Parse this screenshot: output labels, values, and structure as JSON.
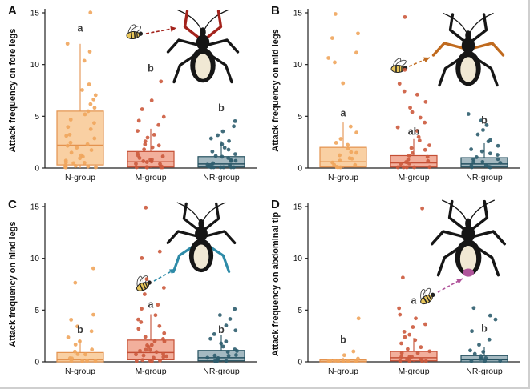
{
  "figure": {
    "background": "#ffffff",
    "panels": [
      "A",
      "B",
      "C",
      "D"
    ]
  },
  "groups": [
    "N-group",
    "M-group",
    "NR-group"
  ],
  "group_styles": [
    {
      "name": "N-group",
      "box_fill": "#F8C893",
      "box_stroke": "#E3924E",
      "point_color": "#EFA55C"
    },
    {
      "name": "M-group",
      "box_fill": "#F0A18B",
      "box_stroke": "#C44F35",
      "point_color": "#CC5A3D"
    },
    {
      "name": "NR-group",
      "box_fill": "#94ADB6",
      "box_stroke": "#24505F",
      "point_color": "#2E5D6E"
    }
  ],
  "chart_data": [
    {
      "type": "boxplot",
      "panel_label": "A",
      "ylabel": "Attack frequency on fore legs",
      "ylim": [
        0,
        15
      ],
      "yticks": [
        0,
        5,
        10,
        15
      ],
      "categories": [
        "N-group",
        "M-group",
        "NR-group"
      ],
      "illustration": {
        "subject": "assassin-bug",
        "attacker": "bee",
        "target": "fore legs",
        "highlight_color": "#A3231C"
      },
      "series": [
        {
          "group": "N-group",
          "sig_letter": "a",
          "letter_y": 13.2,
          "box": {
            "whisker_low": 0,
            "q1": 0.3,
            "median": 2.2,
            "q3": 5.5,
            "whisker_high": 12
          },
          "points": [
            15,
            12,
            11.2,
            10.4,
            8.1,
            7.6,
            7.1,
            6.6,
            6.2,
            5.8,
            5.4,
            5.1,
            4.7,
            4.3,
            4,
            3.7,
            3.3,
            3,
            2.8,
            2.5,
            2.3,
            2.1,
            1.9,
            1.7,
            1.5,
            1.3,
            1.1,
            0.9,
            0.8,
            0.6,
            0.5,
            0.4,
            0.3,
            0.2,
            0.1,
            0,
            0,
            0
          ]
        },
        {
          "group": "M-group",
          "sig_letter": "b",
          "letter_y": 9.3,
          "box": {
            "whisker_low": 0,
            "q1": 0.1,
            "median": 0.6,
            "q3": 1.6,
            "whisker_high": 3.8
          },
          "points": [
            8.3,
            6.6,
            5.6,
            5,
            4.5,
            4.1,
            3.6,
            3.2,
            2.9,
            2.6,
            2.3,
            2.1,
            1.9,
            1.7,
            1.5,
            1.3,
            1.2,
            1,
            0.9,
            0.8,
            0.7,
            0.6,
            0.5,
            0.4,
            0.3,
            0.2,
            0.1,
            0,
            0,
            0,
            0,
            0
          ]
        },
        {
          "group": "NR-group",
          "sig_letter": "b",
          "letter_y": 5.5,
          "box": {
            "whisker_low": 0,
            "q1": 0.1,
            "median": 0.4,
            "q3": 1.1,
            "whisker_high": 2.6
          },
          "points": [
            4.6,
            4.1,
            3.6,
            3.1,
            2.8,
            2.5,
            2.2,
            2,
            1.8,
            1.6,
            1.4,
            1.2,
            1.1,
            0.9,
            0.8,
            0.7,
            0.6,
            0.5,
            0.4,
            0.3,
            0.2,
            0.1,
            0,
            0,
            0,
            0,
            0,
            0
          ]
        }
      ]
    },
    {
      "type": "boxplot",
      "panel_label": "B",
      "ylabel": "Attack frequency on mid legs",
      "ylim": [
        0,
        15
      ],
      "yticks": [
        0,
        5,
        10,
        15
      ],
      "categories": [
        "N-group",
        "M-group",
        "NR-group"
      ],
      "illustration": {
        "subject": "assassin-bug",
        "attacker": "bee",
        "target": "mid legs",
        "highlight_color": "#C06A1E"
      },
      "series": [
        {
          "group": "N-group",
          "sig_letter": "a",
          "letter_y": 5.0,
          "box": {
            "whisker_low": 0,
            "q1": 0.1,
            "median": 0.6,
            "q3": 2.0,
            "whisker_high": 4.4
          },
          "points": [
            14.9,
            13,
            12.6,
            11.1,
            10.6,
            10.1,
            8.2,
            4.1,
            3.4,
            2.9,
            2.5,
            2.2,
            1.9,
            1.6,
            1.4,
            1.2,
            1,
            0.8,
            0.7,
            0.5,
            0.4,
            0.3,
            0.2,
            0.1,
            0,
            0
          ]
        },
        {
          "group": "M-group",
          "sig_letter": "ab",
          "letter_y": 3.2,
          "box": {
            "whisker_low": 0,
            "q1": 0.1,
            "median": 0.5,
            "q3": 1.2,
            "whisker_high": 2.8
          },
          "points": [
            14.6,
            9.6,
            8.1,
            7.5,
            7,
            6.4,
            5.9,
            5.4,
            4.9,
            4.4,
            4,
            3.5,
            3.1,
            2.7,
            2.3,
            2,
            1.7,
            1.5,
            1.2,
            1,
            0.9,
            0.7,
            0.6,
            0.4,
            0.3,
            0.2,
            0.1,
            0,
            0,
            0
          ]
        },
        {
          "group": "NR-group",
          "sig_letter": "b",
          "letter_y": 4.3,
          "box": {
            "whisker_low": 0,
            "q1": 0.1,
            "median": 0.4,
            "q3": 1.0,
            "whisker_high": 2.4
          },
          "points": [
            5.2,
            4.6,
            4.1,
            3.6,
            3.2,
            2.8,
            2.5,
            2.2,
            1.9,
            1.7,
            1.5,
            1.3,
            1.1,
            0.9,
            0.8,
            0.6,
            0.5,
            0.4,
            0.3,
            0.2,
            0.1,
            0,
            0,
            0
          ]
        }
      ]
    },
    {
      "type": "boxplot",
      "panel_label": "C",
      "ylabel": "Attack frequency on hind legs",
      "ylim": [
        0,
        15
      ],
      "yticks": [
        0,
        5,
        10,
        15
      ],
      "categories": [
        "N-group",
        "M-group",
        "NR-group"
      ],
      "illustration": {
        "subject": "assassin-bug",
        "attacker": "bee",
        "target": "hind legs",
        "highlight_color": "#2E8BA8"
      },
      "series": [
        {
          "group": "N-group",
          "sig_letter": "b",
          "letter_y": 2.8,
          "box": {
            "whisker_low": 0,
            "q1": 0,
            "median": 0.2,
            "q3": 0.9,
            "whisker_high": 2.1
          },
          "points": [
            9,
            7.6,
            4.6,
            4.1,
            3.4,
            2.9,
            2.4,
            2,
            1.6,
            1.3,
            1,
            0.8,
            0.6,
            0.4,
            0.3,
            0.2,
            0.1,
            0,
            0
          ]
        },
        {
          "group": "M-group",
          "sig_letter": "a",
          "letter_y": 5.2,
          "box": {
            "whisker_low": 0,
            "q1": 0.2,
            "median": 0.9,
            "q3": 2.1,
            "whisker_high": 4.6
          },
          "points": [
            15,
            10.6,
            10.1,
            8.1,
            7.1,
            6.6,
            5.6,
            5.1,
            4.6,
            4.2,
            3.8,
            3.4,
            3.1,
            2.8,
            2.5,
            2.3,
            2.1,
            1.9,
            1.7,
            1.5,
            1.4,
            1.2,
            1.1,
            1,
            0.9,
            0.8,
            0.7,
            0.6,
            0.5,
            0.4,
            0.3,
            0.2,
            0.1,
            0,
            0,
            0
          ]
        },
        {
          "group": "NR-group",
          "sig_letter": "b",
          "letter_y": 2.8,
          "box": {
            "whisker_low": 0,
            "q1": 0.1,
            "median": 0.4,
            "q3": 1.1,
            "whisker_high": 2.6
          },
          "points": [
            5.1,
            4.6,
            4.1,
            3.6,
            3.1,
            2.7,
            2.3,
            2,
            1.7,
            1.5,
            1.2,
            1,
            0.9,
            0.7,
            0.6,
            0.5,
            0.4,
            0.3,
            0.2,
            0.1,
            0,
            0
          ]
        }
      ]
    },
    {
      "type": "boxplot",
      "panel_label": "D",
      "ylabel": "Attack frequency on abdominal tip",
      "ylim": [
        0,
        15
      ],
      "yticks": [
        0,
        5,
        10,
        15
      ],
      "categories": [
        "N-group",
        "M-group",
        "NR-group"
      ],
      "illustration": {
        "subject": "assassin-bug",
        "attacker": "bee",
        "target": "abdominal tip",
        "highlight_color": "#B0549B"
      },
      "series": [
        {
          "group": "N-group",
          "sig_letter": "b",
          "letter_y": 1.8,
          "box": {
            "whisker_low": 0,
            "q1": 0,
            "median": 0.05,
            "q3": 0.2,
            "whisker_high": 0.4
          },
          "points": [
            4.1,
            1,
            0.6,
            0.4,
            0.2,
            0.1,
            0,
            0,
            0,
            0,
            0
          ]
        },
        {
          "group": "M-group",
          "sig_letter": "a",
          "letter_y": 5.6,
          "box": {
            "whisker_low": 0,
            "q1": 0.1,
            "median": 0.4,
            "q3": 1.0,
            "whisker_high": 2.3
          },
          "points": [
            14.9,
            8.2,
            5.1,
            4.6,
            4.2,
            3.7,
            3.3,
            2.9,
            2.6,
            2.3,
            2,
            1.8,
            1.5,
            1.3,
            1.1,
            0.9,
            0.8,
            0.6,
            0.5,
            0.4,
            0.3,
            0.2,
            0.1,
            0,
            0,
            0
          ]
        },
        {
          "group": "NR-group",
          "sig_letter": "b",
          "letter_y": 2.9,
          "box": {
            "whisker_low": 0,
            "q1": 0,
            "median": 0.2,
            "q3": 0.6,
            "whisker_high": 1.4
          },
          "points": [
            5.1,
            4.4,
            4,
            3,
            2.1,
            1.6,
            1.2,
            0.9,
            0.7,
            0.5,
            0.4,
            0.3,
            0.2,
            0.1,
            0,
            0
          ]
        }
      ]
    }
  ]
}
